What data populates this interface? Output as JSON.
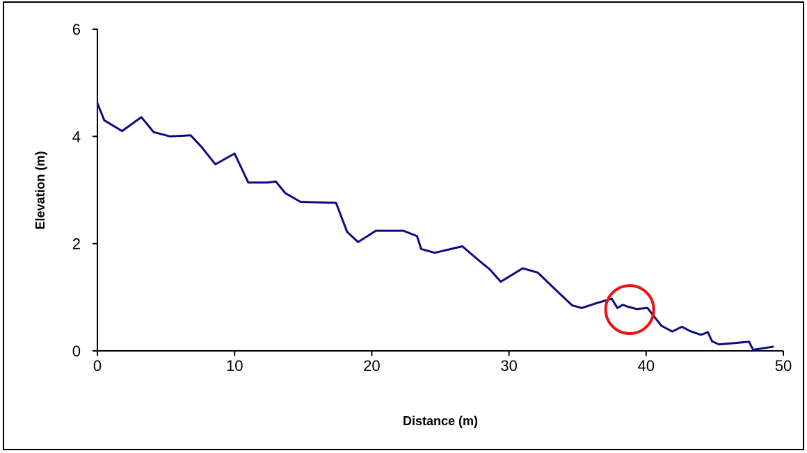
{
  "chart_data": {
    "type": "line",
    "title": "",
    "xlabel": "Distance (m)",
    "ylabel": "Elevation (m)",
    "xlim": [
      0,
      50
    ],
    "ylim": [
      0,
      6
    ],
    "x_ticks": [
      "0",
      "10",
      "20",
      "30",
      "40",
      "50"
    ],
    "y_ticks": [
      "0",
      "2",
      "4",
      "6"
    ],
    "grid": false,
    "legend": "none",
    "colors": {
      "line": "#0b0b80",
      "annotation": "#ee1111",
      "axis": "#000000"
    },
    "series": [
      {
        "x": [
          0,
          0.5,
          1.8,
          3.2,
          4.1,
          5.3,
          6.8,
          7.6,
          8.6,
          10.0,
          11.0,
          12.4,
          13.0,
          13.7,
          14.8,
          17.4,
          18.2,
          19.0,
          20.3,
          22.3,
          23.3,
          23.6,
          24.6,
          26.6,
          27.6,
          28.6,
          29.4,
          31.0,
          32.1,
          33.4,
          34.6,
          35.3,
          36.5,
          37.5,
          37.9,
          38.3,
          38.6,
          39.3,
          40.1,
          40.4,
          41.1,
          41.9,
          42.6,
          43.2,
          44.0,
          44.5,
          44.8,
          45.3,
          47.5,
          47.8,
          49.3
        ],
        "y": [
          4.62,
          4.3,
          4.1,
          4.36,
          4.08,
          4.0,
          4.02,
          3.8,
          3.48,
          3.68,
          3.14,
          3.14,
          3.16,
          2.94,
          2.78,
          2.76,
          2.22,
          2.03,
          2.24,
          2.24,
          2.14,
          1.9,
          1.83,
          1.95,
          1.73,
          1.52,
          1.29,
          1.54,
          1.46,
          1.14,
          0.85,
          0.8,
          0.9,
          0.97,
          0.8,
          0.86,
          0.83,
          0.78,
          0.8,
          0.7,
          0.47,
          0.36,
          0.45,
          0.37,
          0.3,
          0.35,
          0.18,
          0.12,
          0.17,
          0.02,
          0.08
        ]
      }
    ],
    "annotations": [
      {
        "type": "circle",
        "x": 38.8,
        "y": 0.77,
        "radius_x": 1.75,
        "color": "#ee1111"
      }
    ]
  }
}
